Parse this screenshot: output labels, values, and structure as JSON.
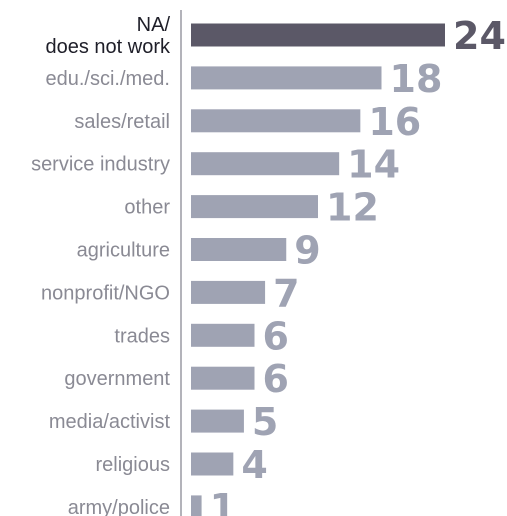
{
  "chart_data": {
    "type": "bar",
    "orientation": "horizontal",
    "categories": [
      "NA/\ndoes not work",
      "edu./sci./med.",
      "sales/retail",
      "service industry",
      "other",
      "agriculture",
      "nonprofit/NGO",
      "trades",
      "government",
      "media/activist",
      "religious",
      "army/police"
    ],
    "values": [
      24,
      18,
      16,
      14,
      12,
      9,
      7,
      6,
      6,
      5,
      4,
      1
    ],
    "highlight_index": 0,
    "title": "",
    "xlabel": "",
    "ylabel": "",
    "grid": false,
    "data_labels": true,
    "colors": {
      "bar": "#9fa3b3",
      "bar_highlight": "#5b5867",
      "label": "#8a8a94",
      "label_highlight": "#1e1e28",
      "axis": "#9a9aa4"
    }
  }
}
